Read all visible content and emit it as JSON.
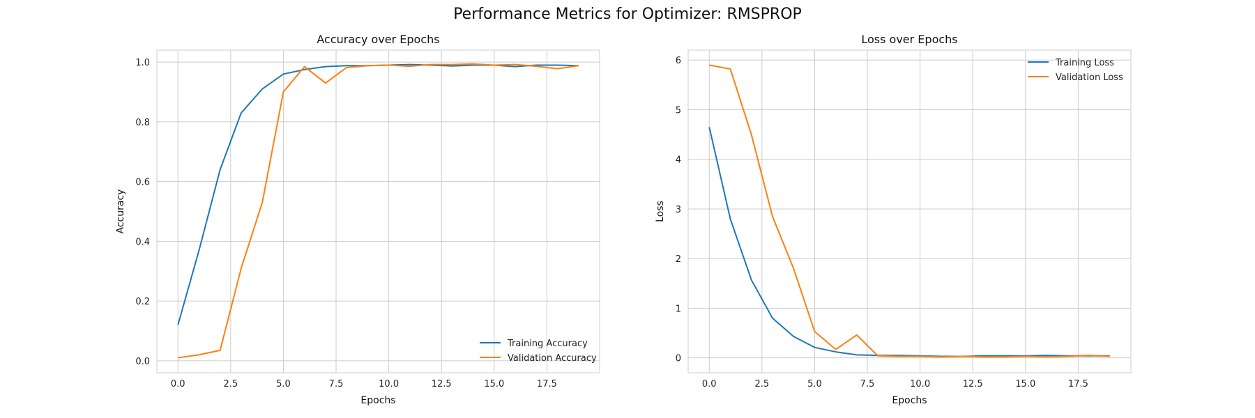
{
  "figure": {
    "suptitle": "Performance Metrics for Optimizer: RMSPROP"
  },
  "colors": {
    "series_1": "#1f77b4",
    "series_2": "#ff7f0e",
    "grid": "#cccccc",
    "background": "#ffffff"
  },
  "chart_data": [
    {
      "type": "line",
      "title": "Accuracy over Epochs",
      "xlabel": "Epochs",
      "ylabel": "Accuracy",
      "xlim": [
        -1,
        20
      ],
      "ylim": [
        -0.04,
        1.04
      ],
      "xticks": [
        0.0,
        2.5,
        5.0,
        7.5,
        10.0,
        12.5,
        15.0,
        17.5
      ],
      "xtick_labels": [
        "0.0",
        "2.5",
        "5.0",
        "7.5",
        "10.0",
        "12.5",
        "15.0",
        "17.5"
      ],
      "yticks": [
        0.0,
        0.2,
        0.4,
        0.6,
        0.8,
        1.0
      ],
      "ytick_labels": [
        "0.0",
        "0.2",
        "0.4",
        "0.6",
        "0.8",
        "1.0"
      ],
      "grid": true,
      "legend_position": "lower right",
      "x": [
        0,
        1,
        2,
        3,
        4,
        5,
        6,
        7,
        8,
        9,
        10,
        11,
        12,
        13,
        14,
        15,
        16,
        17,
        18,
        19
      ],
      "series": [
        {
          "name": "Training Accuracy",
          "color": "#1f77b4",
          "values": [
            0.12,
            0.37,
            0.64,
            0.83,
            0.91,
            0.96,
            0.975,
            0.985,
            0.988,
            0.988,
            0.99,
            0.992,
            0.99,
            0.987,
            0.99,
            0.99,
            0.985,
            0.99,
            0.99,
            0.988
          ]
        },
        {
          "name": "Validation Accuracy",
          "color": "#ff7f0e",
          "values": [
            0.01,
            0.02,
            0.035,
            0.31,
            0.53,
            0.9,
            0.985,
            0.93,
            0.982,
            0.988,
            0.99,
            0.986,
            0.992,
            0.992,
            0.994,
            0.99,
            0.992,
            0.986,
            0.978,
            0.988
          ]
        }
      ]
    },
    {
      "type": "line",
      "title": "Loss over Epochs",
      "xlabel": "Epochs",
      "ylabel": "Loss",
      "xlim": [
        -1,
        20
      ],
      "ylim": [
        -0.3,
        6.2
      ],
      "xticks": [
        0.0,
        2.5,
        5.0,
        7.5,
        10.0,
        12.5,
        15.0,
        17.5
      ],
      "xtick_labels": [
        "0.0",
        "2.5",
        "5.0",
        "7.5",
        "10.0",
        "12.5",
        "15.0",
        "17.5"
      ],
      "yticks": [
        0,
        1,
        2,
        3,
        4,
        5,
        6
      ],
      "ytick_labels": [
        "0",
        "1",
        "2",
        "3",
        "4",
        "5",
        "6"
      ],
      "grid": true,
      "legend_position": "upper right",
      "x": [
        0,
        1,
        2,
        3,
        4,
        5,
        6,
        7,
        8,
        9,
        10,
        11,
        12,
        13,
        14,
        15,
        16,
        17,
        18,
        19
      ],
      "series": [
        {
          "name": "Training Loss",
          "color": "#1f77b4",
          "values": [
            4.65,
            2.8,
            1.57,
            0.8,
            0.43,
            0.21,
            0.12,
            0.06,
            0.05,
            0.05,
            0.04,
            0.03,
            0.03,
            0.04,
            0.04,
            0.04,
            0.05,
            0.04,
            0.04,
            0.04
          ]
        },
        {
          "name": "Validation Loss",
          "color": "#ff7f0e",
          "values": [
            5.9,
            5.82,
            4.5,
            2.85,
            1.8,
            0.53,
            0.17,
            0.46,
            0.04,
            0.03,
            0.03,
            0.02,
            0.03,
            0.02,
            0.02,
            0.03,
            0.02,
            0.03,
            0.05,
            0.03
          ]
        }
      ]
    }
  ]
}
